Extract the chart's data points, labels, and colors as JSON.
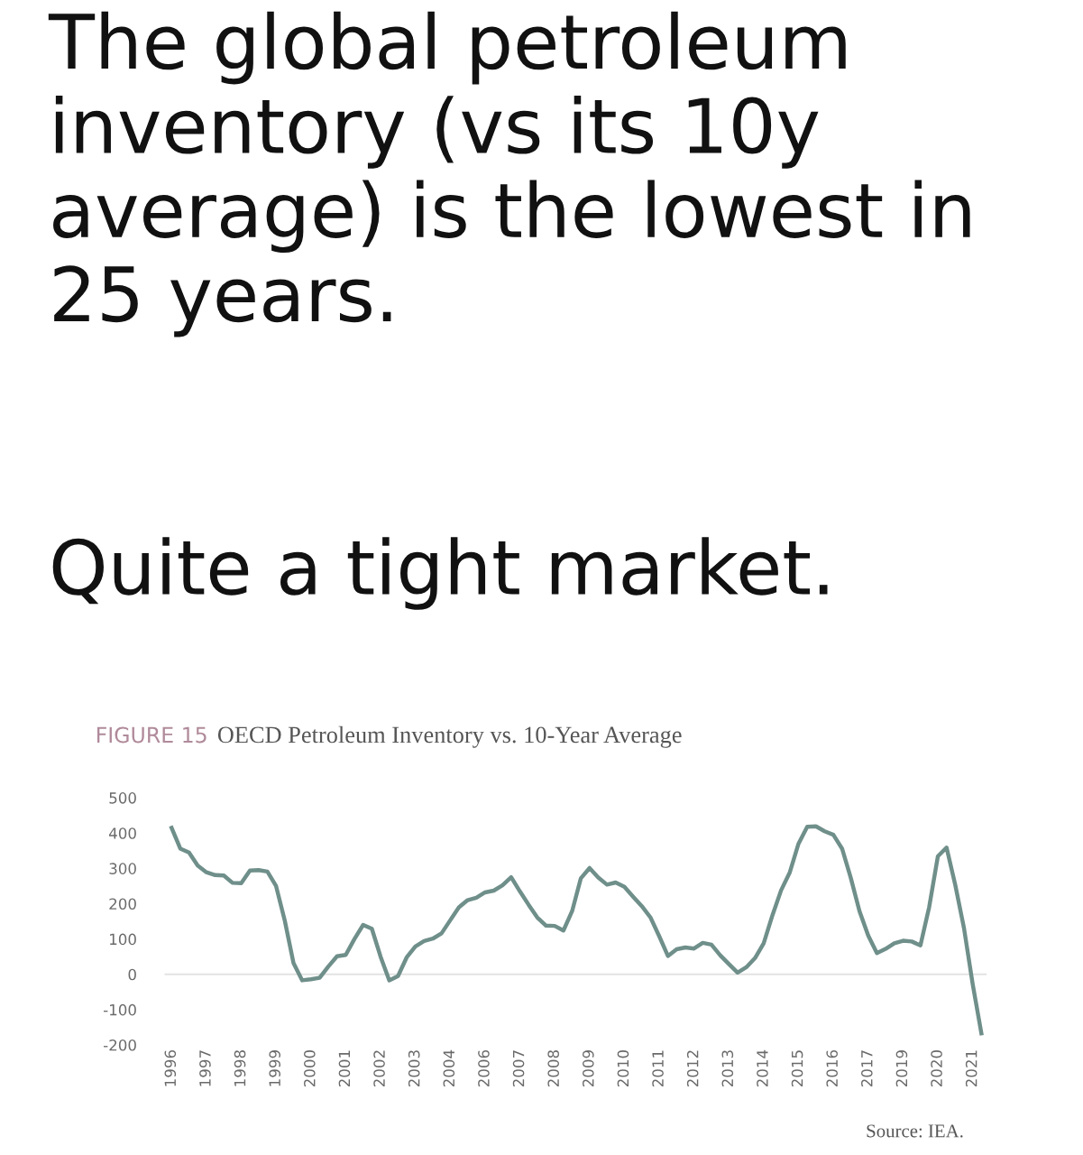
{
  "chart_data": {
    "type": "line",
    "title": "The global petroleum inventory (vs its 10y average) is the lowest in 25 years.",
    "subtitle": "Quite a tight market.",
    "annotations": [
      "FIGURE 15",
      "OECD Petroleum Inventory vs. 10-Year Average",
      "Source: IEA."
    ],
    "categories": [
      "1996",
      null,
      null,
      null,
      "1997",
      null,
      null,
      null,
      "1998",
      null,
      null,
      null,
      "1999",
      null,
      null,
      null,
      "2000",
      null,
      null,
      null,
      "2001",
      null,
      null,
      null,
      "2002",
      null,
      null,
      null,
      "2003",
      null,
      null,
      null,
      "2004",
      null,
      null,
      null,
      "2006",
      null,
      null,
      null,
      "2007",
      null,
      null,
      null,
      "2008",
      null,
      null,
      null,
      "2009",
      null,
      null,
      null,
      "2010",
      null,
      null,
      null,
      "2011",
      null,
      null,
      null,
      "2012",
      null,
      null,
      null,
      "2013",
      null,
      null,
      null,
      "2014",
      null,
      null,
      null,
      "2015",
      null,
      null,
      null,
      "2016",
      null,
      null,
      null,
      "2017",
      null,
      null,
      null,
      "2019",
      null,
      null,
      null,
      "2020",
      null,
      null,
      null,
      "2021",
      null
    ],
    "series": [
      {
        "color": "#6f8f8a",
        "values": [
          415,
          356,
          345,
          308,
          289,
          281,
          280,
          259,
          258,
          294,
          295,
          291,
          250,
          152,
          32,
          -17,
          -14,
          -10,
          22,
          51,
          55,
          100,
          140,
          129,
          50,
          -17,
          -5,
          48,
          79,
          94,
          101,
          116,
          153,
          190,
          210,
          217,
          232,
          237,
          252,
          275,
          235,
          197,
          161,
          138,
          137,
          124,
          179,
          272,
          301,
          274,
          254,
          260,
          248,
          220,
          193,
          161,
          108,
          52,
          71,
          76,
          73,
          89,
          84,
          54,
          29,
          5,
          20,
          46,
          88,
          167,
          238,
          289,
          370,
          418,
          419,
          405,
          395,
          356,
          273,
          179,
          110,
          60,
          72,
          88,
          95,
          93,
          82,
          190,
          334,
          359,
          253,
          131,
          -28,
          -167
        ]
      }
    ],
    "ylim": [
      -200,
      500
    ],
    "yticks": [
      -200,
      -100,
      0,
      100,
      200,
      300,
      400,
      500
    ],
    "ref_lines": [
      {
        "axis": "y",
        "value": 0,
        "color": "#e3e3e3"
      }
    ],
    "grid": false,
    "legend": false,
    "marker": "none",
    "line_style": "solid"
  }
}
